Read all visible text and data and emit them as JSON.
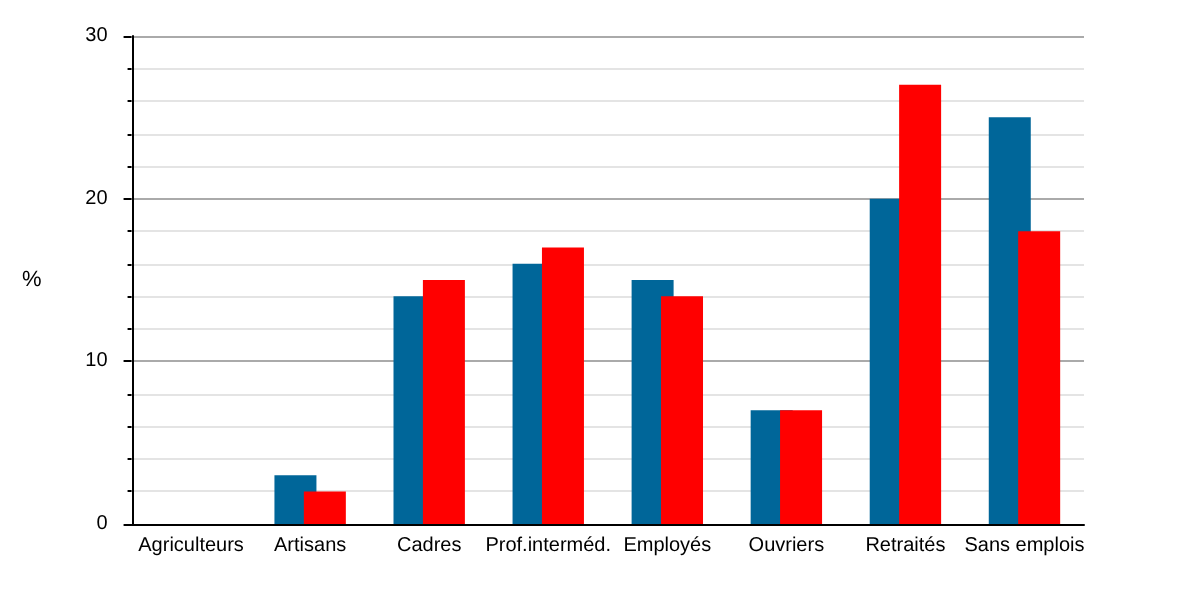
{
  "chart_data": {
    "type": "bar",
    "ylabel": "%",
    "categories": [
      "Agriculteurs",
      "Artisans",
      "Cadres",
      "Prof.interméd.",
      "Employés",
      "Ouvriers",
      "Retraités",
      "Sans emplois"
    ],
    "series": [
      {
        "color": "#006699",
        "values": [
          0,
          3,
          14,
          16,
          15,
          7,
          20,
          25
        ]
      },
      {
        "color": "#ff0000",
        "values": [
          0,
          2,
          15,
          17,
          14,
          7,
          27,
          18
        ]
      }
    ],
    "ylim": [
      0,
      30
    ],
    "yticks": [
      0,
      10,
      20,
      30
    ],
    "grid": "y"
  }
}
